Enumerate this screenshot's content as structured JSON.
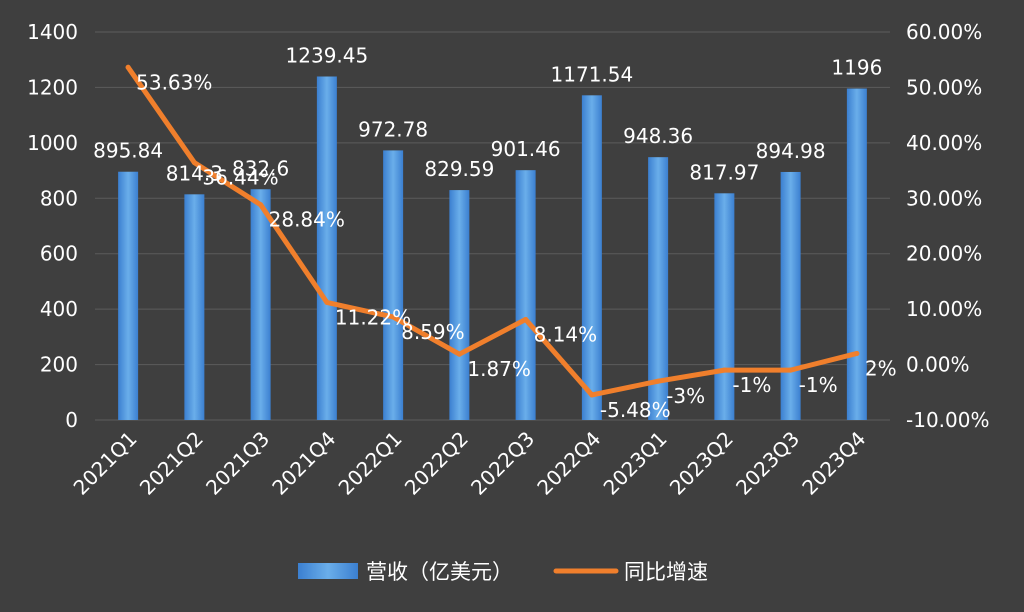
{
  "chart_data": {
    "type": "bar",
    "categories": [
      "2021Q1",
      "2021Q2",
      "2021Q3",
      "2021Q4",
      "2022Q1",
      "2022Q2",
      "2022Q3",
      "2022Q4",
      "2023Q1",
      "2023Q2",
      "2023Q3",
      "2023Q4"
    ],
    "series": [
      {
        "name": "营收（亿美元）",
        "type": "bar",
        "axis": "left",
        "values": [
          895.84,
          814.3,
          832.6,
          1239.45,
          972.78,
          829.59,
          901.46,
          1171.54,
          948.36,
          817.97,
          894.98,
          1196
        ],
        "labels": [
          "895.84",
          "814.3",
          "832.6",
          "1239.45",
          "972.78",
          "829.59",
          "901.46",
          "1171.54",
          "948.36",
          "817.97",
          "894.98",
          "1196"
        ]
      },
      {
        "name": "同比增速",
        "type": "line",
        "axis": "right",
        "values": [
          53.63,
          36.44,
          28.84,
          11.22,
          8.59,
          1.87,
          8.14,
          -5.48,
          -3,
          -1,
          -1,
          2
        ],
        "labels": [
          "53.63%",
          "36.44%",
          "28.84%",
          "11.22%",
          "8.59%",
          "1.87%",
          "8.14%",
          "-5.48%",
          "-3%",
          "-1%",
          "-1%",
          "2%"
        ]
      }
    ],
    "y_left": {
      "ylim": [
        0,
        1400
      ],
      "ticks": [
        "0",
        "200",
        "400",
        "600",
        "800",
        "1000",
        "1200",
        "1400"
      ]
    },
    "y_right": {
      "ylim": [
        -10,
        60
      ],
      "ticks": [
        "-10.00%",
        "0.00%",
        "10.00%",
        "20.00%",
        "30.00%",
        "40.00%",
        "50.00%",
        "60.00%"
      ]
    },
    "legend_position": "bottom",
    "grid": true,
    "colors": {
      "bar": "#4a90d9",
      "line": "#f07f2c",
      "grid": "#5c5c5c",
      "text": "#ffffff"
    }
  }
}
